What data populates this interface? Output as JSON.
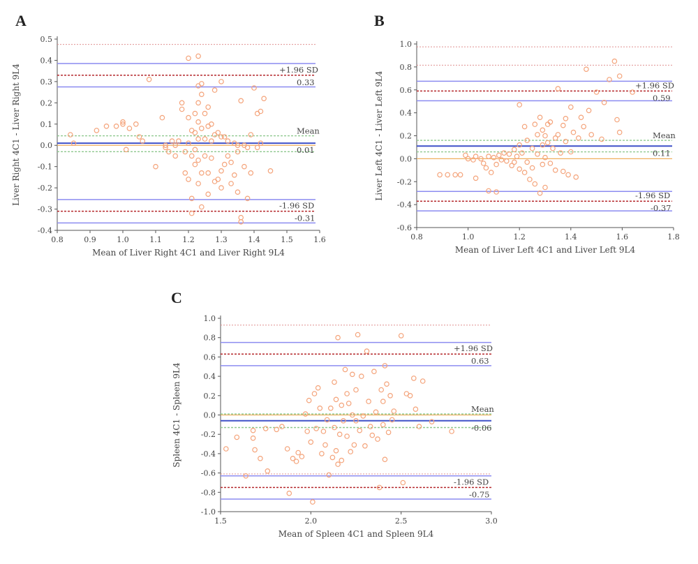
{
  "chart_data": [
    {
      "type": "scatter",
      "panel": "A",
      "xlabel": "Mean of Liver Right 4C1 and Liver Right 9L4",
      "ylabel": "Liver Right 4C1 - Liver Right 9L4",
      "xlim": [
        0.8,
        1.6
      ],
      "ylim": [
        -0.4,
        0.5
      ],
      "xticks": [
        "0.8",
        "0.9",
        "1.0",
        "1.1",
        "1.2",
        "1.3",
        "1.4",
        "1.5",
        "1.6"
      ],
      "yticks": [
        "-0.4",
        "-0.3",
        "-0.2",
        "-0.1",
        "0.0",
        "0.1",
        "0.2",
        "0.3",
        "0.4",
        "0.5"
      ],
      "mean": 0.01,
      "mean_ci": [
        -0.03,
        0.045
      ],
      "upper_loa": 0.33,
      "upper_ci": [
        0.275,
        0.385
      ],
      "lower_loa": -0.31,
      "lower_ci": [
        -0.365,
        -0.255
      ],
      "zero_line": 0.0,
      "extra_line": 0.475,
      "labels": {
        "upper": "+1.96 SD",
        "upper_value": "0.33",
        "mean": "Mean",
        "mean_value": "0.01",
        "lower": "-1.96 SD",
        "lower_value": "-0.31"
      },
      "points": [
        [
          0.84,
          0.05
        ],
        [
          0.85,
          0.01
        ],
        [
          0.92,
          0.07
        ],
        [
          0.95,
          0.09
        ],
        [
          0.98,
          0.09
        ],
        [
          1.0,
          0.1
        ],
        [
          1.0,
          0.11
        ],
        [
          1.02,
          0.08
        ],
        [
          1.04,
          0.1
        ],
        [
          1.06,
          0.02
        ],
        [
          1.01,
          -0.02
        ],
        [
          1.05,
          0.04
        ],
        [
          1.08,
          0.31
        ],
        [
          1.1,
          -0.1
        ],
        [
          1.12,
          0.13
        ],
        [
          1.13,
          0.0
        ],
        [
          1.13,
          -0.01
        ],
        [
          1.14,
          -0.03
        ],
        [
          1.15,
          0.02
        ],
        [
          1.16,
          0.0
        ],
        [
          1.16,
          -0.05
        ],
        [
          1.17,
          0.02
        ],
        [
          1.18,
          0.2
        ],
        [
          1.18,
          0.17
        ],
        [
          1.19,
          -0.03
        ],
        [
          1.19,
          -0.13
        ],
        [
          1.2,
          0.41
        ],
        [
          1.2,
          0.13
        ],
        [
          1.2,
          0.01
        ],
        [
          1.2,
          -0.16
        ],
        [
          1.21,
          0.07
        ],
        [
          1.21,
          -0.05
        ],
        [
          1.21,
          -0.25
        ],
        [
          1.21,
          -0.32
        ],
        [
          1.22,
          0.15
        ],
        [
          1.22,
          0.06
        ],
        [
          1.22,
          -0.02
        ],
        [
          1.22,
          -0.09
        ],
        [
          1.23,
          0.42
        ],
        [
          1.23,
          0.28
        ],
        [
          1.23,
          0.2
        ],
        [
          1.23,
          0.11
        ],
        [
          1.23,
          0.03
        ],
        [
          1.23,
          -0.07
        ],
        [
          1.23,
          -0.18
        ],
        [
          1.24,
          0.24
        ],
        [
          1.24,
          0.08
        ],
        [
          1.24,
          -0.13
        ],
        [
          1.24,
          -0.29
        ],
        [
          1.25,
          0.15
        ],
        [
          1.25,
          0.03
        ],
        [
          1.25,
          -0.05
        ],
        [
          1.26,
          0.18
        ],
        [
          1.26,
          0.09
        ],
        [
          1.26,
          -0.13
        ],
        [
          1.26,
          -0.23
        ],
        [
          1.27,
          0.1
        ],
        [
          1.27,
          0.02
        ],
        [
          1.27,
          -0.06
        ],
        [
          1.28,
          0.26
        ],
        [
          1.28,
          0.05
        ],
        [
          1.28,
          -0.17
        ],
        [
          1.29,
          0.06
        ],
        [
          1.3,
          0.3
        ],
        [
          1.3,
          0.04
        ],
        [
          1.3,
          -0.12
        ],
        [
          1.3,
          -0.2
        ],
        [
          1.31,
          0.04
        ],
        [
          1.31,
          -0.09
        ],
        [
          1.32,
          0.02
        ],
        [
          1.32,
          -0.05
        ],
        [
          1.33,
          -0.08
        ],
        [
          1.33,
          -0.18
        ],
        [
          1.34,
          0.01
        ],
        [
          1.34,
          -0.14
        ],
        [
          1.35,
          0.0
        ],
        [
          1.35,
          -0.22
        ],
        [
          1.36,
          0.21
        ],
        [
          1.36,
          -0.34
        ],
        [
          1.36,
          -0.36
        ],
        [
          1.37,
          0.0
        ],
        [
          1.37,
          -0.1
        ],
        [
          1.38,
          -0.01
        ],
        [
          1.39,
          0.05
        ],
        [
          1.39,
          -0.13
        ],
        [
          1.4,
          0.27
        ],
        [
          1.41,
          0.15
        ],
        [
          1.41,
          -0.01
        ],
        [
          1.42,
          0.16
        ],
        [
          1.42,
          0.01
        ],
        [
          1.43,
          0.22
        ],
        [
          1.45,
          -0.12
        ],
        [
          1.38,
          -0.25
        ],
        [
          1.29,
          -0.16
        ],
        [
          1.24,
          0.29
        ],
        [
          1.35,
          -0.03
        ]
      ]
    },
    {
      "type": "scatter",
      "panel": "B",
      "xlabel": "Mean of Liver Left 4C1 and Liver Left 9L4",
      "ylabel": "Liver Left 4C1 - Liver Left 9L4",
      "xlim": [
        0.8,
        1.8
      ],
      "ylim": [
        -0.6,
        1.0
      ],
      "xticks": [
        "0.8",
        "1.0",
        "1.2",
        "1.4",
        "1.6",
        "1.8"
      ],
      "yticks": [
        "-0.6",
        "-0.4",
        "-0.2",
        "0.0",
        "0.2",
        "0.4",
        "0.6",
        "0.8",
        "1.0"
      ],
      "mean": 0.11,
      "mean_ci": [
        0.06,
        0.16
      ],
      "upper_loa": 0.59,
      "upper_ci": [
        0.505,
        0.675
      ],
      "lower_loa": -0.37,
      "lower_ci": [
        -0.455,
        -0.285
      ],
      "zero_line": 0.0,
      "extra_line": [
        0.815,
        0.975
      ],
      "labels": {
        "upper": "+1.96 SD",
        "upper_value": "0.59",
        "mean": "Mean",
        "mean_value": "0.11",
        "lower": "-1.96 SD",
        "lower_value": "-0.37"
      },
      "points": [
        [
          0.89,
          -0.14
        ],
        [
          0.92,
          -0.14
        ],
        [
          0.95,
          -0.14
        ],
        [
          0.97,
          -0.14
        ],
        [
          0.99,
          0.03
        ],
        [
          1.0,
          0.0
        ],
        [
          1.02,
          -0.01
        ],
        [
          1.03,
          0.02
        ],
        [
          1.03,
          -0.17
        ],
        [
          1.05,
          0.0
        ],
        [
          1.06,
          -0.04
        ],
        [
          1.07,
          -0.08
        ],
        [
          1.08,
          0.02
        ],
        [
          1.08,
          -0.28
        ],
        [
          1.09,
          -0.12
        ],
        [
          1.1,
          0.01
        ],
        [
          1.11,
          -0.05
        ],
        [
          1.11,
          -0.29
        ],
        [
          1.12,
          0.03
        ],
        [
          1.13,
          -0.01
        ],
        [
          1.14,
          0.05
        ],
        [
          1.15,
          -0.02
        ],
        [
          1.16,
          0.04
        ],
        [
          1.17,
          -0.06
        ],
        [
          1.18,
          0.08
        ],
        [
          1.18,
          -0.03
        ],
        [
          1.19,
          0.02
        ],
        [
          1.2,
          0.47
        ],
        [
          1.2,
          0.12
        ],
        [
          1.2,
          -0.09
        ],
        [
          1.21,
          0.05
        ],
        [
          1.22,
          0.28
        ],
        [
          1.22,
          -0.12
        ],
        [
          1.23,
          0.16
        ],
        [
          1.23,
          -0.03
        ],
        [
          1.24,
          -0.18
        ],
        [
          1.25,
          0.09
        ],
        [
          1.25,
          -0.08
        ],
        [
          1.26,
          0.3
        ],
        [
          1.26,
          -0.22
        ],
        [
          1.27,
          0.21
        ],
        [
          1.27,
          0.04
        ],
        [
          1.28,
          -0.3
        ],
        [
          1.28,
          0.36
        ],
        [
          1.29,
          0.25
        ],
        [
          1.29,
          0.12
        ],
        [
          1.29,
          -0.05
        ],
        [
          1.3,
          0.2
        ],
        [
          1.3,
          0.01
        ],
        [
          1.3,
          -0.25
        ],
        [
          1.31,
          0.3
        ],
        [
          1.31,
          0.14
        ],
        [
          1.32,
          -0.04
        ],
        [
          1.32,
          0.32
        ],
        [
          1.33,
          0.09
        ],
        [
          1.34,
          0.18
        ],
        [
          1.34,
          -0.1
        ],
        [
          1.35,
          0.61
        ],
        [
          1.35,
          0.21
        ],
        [
          1.36,
          0.05
        ],
        [
          1.37,
          0.29
        ],
        [
          1.37,
          -0.11
        ],
        [
          1.38,
          0.35
        ],
        [
          1.38,
          0.15
        ],
        [
          1.39,
          -0.14
        ],
        [
          1.4,
          0.45
        ],
        [
          1.4,
          0.06
        ],
        [
          1.41,
          0.23
        ],
        [
          1.42,
          -0.16
        ],
        [
          1.43,
          0.18
        ],
        [
          1.44,
          0.36
        ],
        [
          1.45,
          0.28
        ],
        [
          1.46,
          0.78
        ],
        [
          1.47,
          0.42
        ],
        [
          1.48,
          0.21
        ],
        [
          1.5,
          0.58
        ],
        [
          1.52,
          0.17
        ],
        [
          1.53,
          0.49
        ],
        [
          1.55,
          0.69
        ],
        [
          1.57,
          0.85
        ],
        [
          1.58,
          0.34
        ],
        [
          1.59,
          0.72
        ],
        [
          1.59,
          0.23
        ],
        [
          1.64,
          0.58
        ]
      ]
    },
    {
      "type": "scatter",
      "panel": "C",
      "xlabel": "Mean of Spleen 4C1 and Spleen 9L4",
      "ylabel": "Spleen 4C1 - Spleen 9L4",
      "xlim": [
        1.5,
        3.0
      ],
      "ylim": [
        -1.0,
        1.0
      ],
      "xticks": [
        "1.5",
        "2.0",
        "2.5",
        "3.0"
      ],
      "yticks": [
        "-1.0",
        "-0.8",
        "-0.6",
        "-0.4",
        "-0.2",
        "0.0",
        "0.2",
        "0.4",
        "0.6",
        "0.8",
        "1.0"
      ],
      "mean": -0.06,
      "mean_ci": [
        -0.13,
        0.01
      ],
      "upper_loa": 0.63,
      "upper_ci": [
        0.51,
        0.75
      ],
      "lower_loa": -0.75,
      "lower_ci": [
        -0.87,
        -0.63
      ],
      "zero_line": 0.0,
      "extra_line": [
        -0.61,
        0.93
      ],
      "labels": {
        "upper": "+1.96 SD",
        "upper_value": "0.63",
        "mean": "Mean",
        "mean_value": "-0.06",
        "lower": "-1.96 SD",
        "lower_value": "-0.75"
      },
      "points": [
        [
          1.53,
          -0.35
        ],
        [
          1.59,
          -0.23
        ],
        [
          1.64,
          -0.63
        ],
        [
          1.68,
          -0.16
        ],
        [
          1.68,
          -0.24
        ],
        [
          1.69,
          -0.36
        ],
        [
          1.72,
          -0.45
        ],
        [
          1.75,
          -0.14
        ],
        [
          1.76,
          -0.58
        ],
        [
          1.81,
          -0.15
        ],
        [
          1.84,
          -0.12
        ],
        [
          1.87,
          -0.35
        ],
        [
          1.88,
          -0.81
        ],
        [
          1.9,
          -0.45
        ],
        [
          1.92,
          -0.48
        ],
        [
          1.93,
          -0.39
        ],
        [
          1.95,
          -0.43
        ],
        [
          1.97,
          0.01
        ],
        [
          1.98,
          -0.17
        ],
        [
          1.99,
          0.15
        ],
        [
          2.0,
          -0.28
        ],
        [
          2.01,
          -0.9
        ],
        [
          2.02,
          0.22
        ],
        [
          2.03,
          -0.14
        ],
        [
          2.04,
          0.28
        ],
        [
          2.05,
          0.07
        ],
        [
          2.06,
          -0.4
        ],
        [
          2.07,
          -0.17
        ],
        [
          2.08,
          -0.31
        ],
        [
          2.09,
          -0.05
        ],
        [
          2.1,
          -0.62
        ],
        [
          2.11,
          0.07
        ],
        [
          2.12,
          -0.44
        ],
        [
          2.13,
          0.34
        ],
        [
          2.13,
          -0.13
        ],
        [
          2.14,
          0.16
        ],
        [
          2.14,
          -0.37
        ],
        [
          2.15,
          -0.51
        ],
        [
          2.15,
          0.8
        ],
        [
          2.16,
          -0.2
        ],
        [
          2.17,
          0.1
        ],
        [
          2.17,
          -0.47
        ],
        [
          2.18,
          -0.06
        ],
        [
          2.19,
          0.47
        ],
        [
          2.2,
          -0.22
        ],
        [
          2.2,
          0.22
        ],
        [
          2.21,
          0.12
        ],
        [
          2.22,
          -0.38
        ],
        [
          2.23,
          0.42
        ],
        [
          2.23,
          0.0
        ],
        [
          2.24,
          -0.31
        ],
        [
          2.25,
          0.26
        ],
        [
          2.25,
          -0.06
        ],
        [
          2.26,
          0.83
        ],
        [
          2.27,
          -0.16
        ],
        [
          2.28,
          0.4
        ],
        [
          2.29,
          -0.01
        ],
        [
          2.3,
          -0.32
        ],
        [
          2.31,
          0.66
        ],
        [
          2.32,
          0.14
        ],
        [
          2.33,
          -0.12
        ],
        [
          2.34,
          -0.21
        ],
        [
          2.35,
          0.45
        ],
        [
          2.36,
          0.03
        ],
        [
          2.37,
          -0.25
        ],
        [
          2.38,
          -0.75
        ],
        [
          2.39,
          0.26
        ],
        [
          2.4,
          -0.1
        ],
        [
          2.4,
          0.14
        ],
        [
          2.41,
          0.51
        ],
        [
          2.41,
          -0.46
        ],
        [
          2.42,
          0.32
        ],
        [
          2.43,
          -0.18
        ],
        [
          2.44,
          0.2
        ],
        [
          2.45,
          -0.05
        ],
        [
          2.46,
          0.04
        ],
        [
          2.5,
          0.82
        ],
        [
          2.51,
          -0.7
        ],
        [
          2.53,
          0.22
        ],
        [
          2.55,
          0.2
        ],
        [
          2.57,
          0.38
        ],
        [
          2.58,
          0.06
        ],
        [
          2.6,
          -0.12
        ],
        [
          2.62,
          0.35
        ],
        [
          2.67,
          -0.07
        ],
        [
          2.78,
          -0.17
        ]
      ]
    }
  ]
}
